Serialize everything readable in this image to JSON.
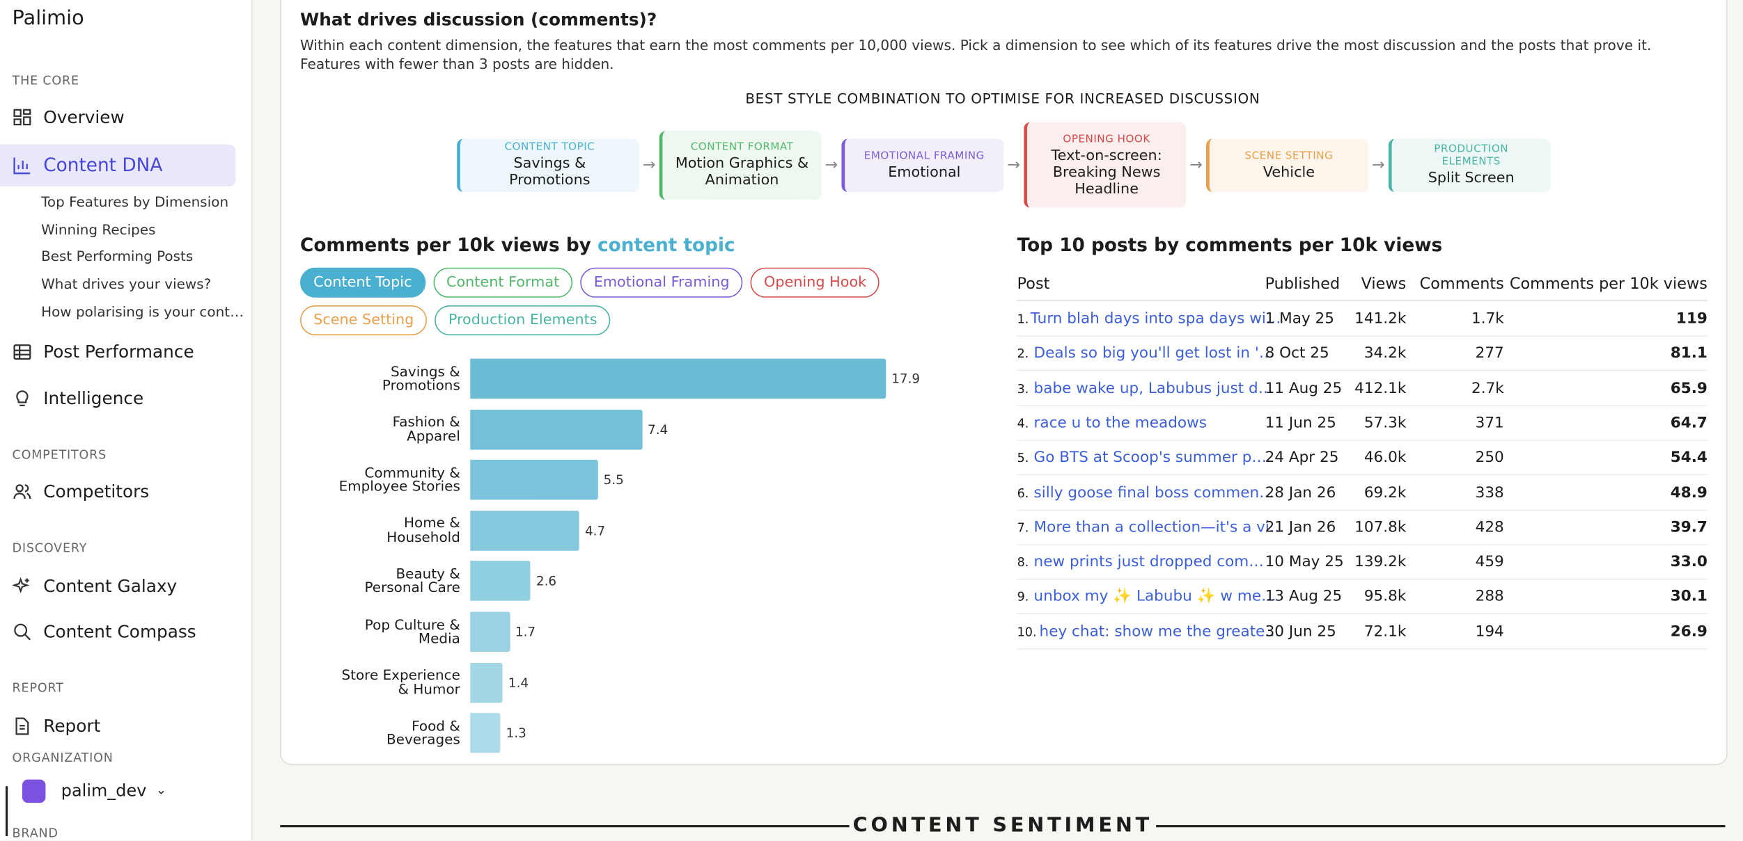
{
  "sidebar": {
    "brand": "Palimio",
    "groups": [
      {
        "heading": "THE CORE",
        "items": [
          "Overview",
          "Content DNA"
        ]
      },
      {
        "heading": null,
        "items": [
          "Post Performance",
          "Intelligence"
        ]
      },
      {
        "heading": "COMPETITORS",
        "items": [
          "Competitors"
        ]
      },
      {
        "heading": "DISCOVERY",
        "items": [
          "Content Galaxy",
          "Content Compass"
        ]
      },
      {
        "heading": "REPORT",
        "items": [
          "Report"
        ]
      }
    ],
    "sub_items": [
      "Top Features by Dimension",
      "Winning Recipes",
      "Best Performing Posts",
      "What drives your views?",
      "How polarising is your cont…"
    ],
    "organization_heading": "ORGANIZATION",
    "organization": "palim_dev",
    "brand_heading": "BRAND"
  },
  "section": {
    "title": "What drives discussion (comments)?",
    "description": "Within each content dimension, the features that earn the most comments per 10,000 views. Pick a dimension to see which of its features drive the most discussion and the posts that prove it. Features with fewer than 3 posts are hidden.",
    "combo_heading": "BEST STYLE COMBINATION TO OPTIMISE FOR INCREASED DISCUSSION",
    "combo": [
      {
        "label": "CONTENT TOPIC",
        "value": "Savings & Promotions",
        "color": "#4bb0cf",
        "bg": "#eef7fb"
      },
      {
        "label": "CONTENT FORMAT",
        "value": "Motion Graphics & Animation",
        "color": "#52b86b",
        "bg": "#eef8f0"
      },
      {
        "label": "EMOTIONAL FRAMING",
        "value": "Emotional",
        "color": "#7b5cd6",
        "bg": "#f2effb"
      },
      {
        "label": "OPENING HOOK",
        "value": "Text-on-screen: Breaking News Headline",
        "color": "#d94b4b",
        "bg": "#fbeeee"
      },
      {
        "label": "SCENE SETTING",
        "value": "Vehicle",
        "color": "#e8a04a",
        "bg": "#fdf5ec"
      },
      {
        "label": "PRODUCTION ELEMENTS",
        "value": "Split Screen",
        "color": "#4ab5a4",
        "bg": "#edf7f5"
      }
    ],
    "tabs": [
      {
        "label": "Content Topic",
        "color": "#4bb0cf",
        "active": true
      },
      {
        "label": "Content Format",
        "color": "#52b86b",
        "active": false
      },
      {
        "label": "Emotional Framing",
        "color": "#7b5cd6",
        "active": false
      },
      {
        "label": "Opening Hook",
        "color": "#d94b4b",
        "active": false
      },
      {
        "label": "Scene Setting",
        "color": "#e8a04a",
        "active": false
      },
      {
        "label": "Production Elements",
        "color": "#4ab5a4",
        "active": false
      }
    ],
    "footer_heading": "CONTENT SENTIMENT"
  },
  "chart_data": {
    "type": "bar",
    "orientation": "horizontal",
    "title": "Comments per 10k views by",
    "title_highlight": "content topic",
    "highlight_color": "#4bb0cf",
    "categories": [
      "Savings & Promotions",
      "Fashion & Apparel",
      "Community & Employee Stories",
      "Home & Household",
      "Beauty & Personal Care",
      "Pop Culture & Media",
      "Store Experience & Humor",
      "Food & Beverages"
    ],
    "values": [
      17.9,
      7.4,
      5.5,
      4.7,
      2.6,
      1.7,
      1.4,
      1.3
    ],
    "colors": [
      "#6cbcd6",
      "#73c0d8",
      "#7cc4db",
      "#86c9de",
      "#90cee1",
      "#9ad2e3",
      "#a4d7e6",
      "#aedbe9"
    ]
  },
  "table": {
    "title": "Top 10 posts by comments per 10k views",
    "columns": [
      "Post",
      "Published",
      "Views",
      "Comments",
      "Comments per 10k views"
    ],
    "rows": [
      [
        "1.",
        "Turn blah days into spa days wi…",
        "1 May 25",
        "141.2k",
        "1.7k",
        "119"
      ],
      [
        "2.",
        "Deals so big you'll get lost in '…",
        "8 Oct 25",
        "34.2k",
        "277",
        "81.1"
      ],
      [
        "3.",
        "babe wake up, Labubus just d…",
        "11 Aug 25",
        "412.1k",
        "2.7k",
        "65.9"
      ],
      [
        "4.",
        "race u to the meadows",
        "11 Jun 25",
        "57.3k",
        "371",
        "64.7"
      ],
      [
        "5.",
        "Go BTS at Scoop's summer p…",
        "24 Apr 25",
        "46.0k",
        "250",
        "54.4"
      ],
      [
        "6.",
        "silly goose final boss commen…",
        "28 Jan 26",
        "69.2k",
        "338",
        "48.9"
      ],
      [
        "7.",
        "More than a collection—it's a vi…",
        "21 Jan 26",
        "107.8k",
        "428",
        "39.7"
      ],
      [
        "8.",
        "new prints just dropped com…",
        "10 May 25",
        "139.2k",
        "459",
        "33.0"
      ],
      [
        "9.",
        "unbox my ✨ Labubu ✨ w me…",
        "13 Aug 25",
        "95.8k",
        "288",
        "30.1"
      ],
      [
        "10.",
        "hey chat: show me the greate…",
        "30 Jun 25",
        "72.1k",
        "194",
        "26.9"
      ]
    ]
  }
}
